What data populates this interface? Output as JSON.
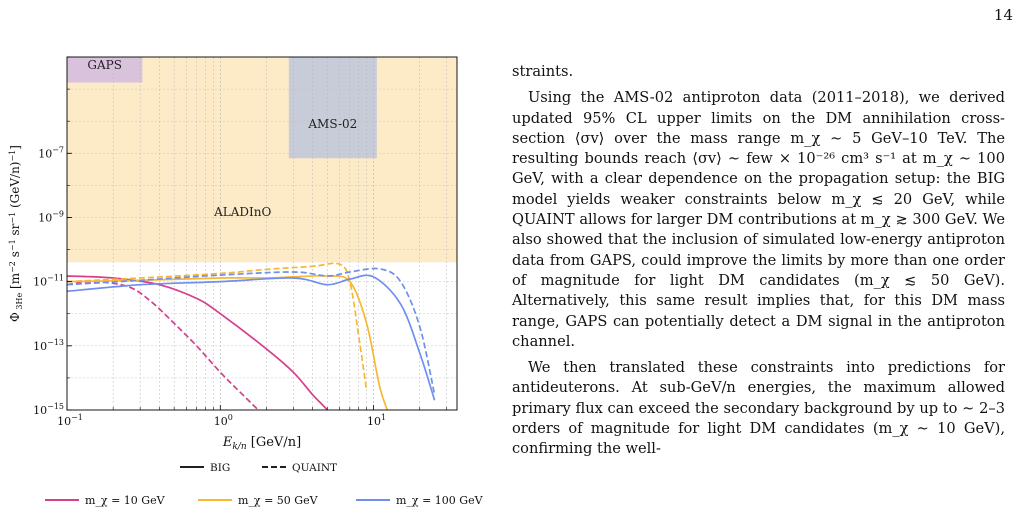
{
  "page_number": "14",
  "chart_data": {
    "type": "line",
    "xscale": "log",
    "yscale": "log",
    "xlim": [
      0.1,
      35
    ],
    "ylim": [
      1e-15,
      0.0001
    ],
    "xlabel": "E_{k/n} [GeV/n]",
    "ylabel": "Φ_{3He-bar} [m^-2 s^-1 sr^-1 (GeV/n)^-1]",
    "xticks": [
      "10^-1",
      "10^0",
      "10^1"
    ],
    "yticks": [
      "10^-15",
      "10^-13",
      "10^-11",
      "10^-9",
      "10^-7"
    ],
    "regions": [
      {
        "label": "GAPS",
        "color": "#d9c3dc",
        "x": [
          0.1,
          0.31
        ],
        "y": [
          1.6e-05,
          0.0001
        ]
      },
      {
        "label": "AMS-02",
        "color": "#c8cbd8",
        "x": [
          2.8,
          10.5
        ],
        "y": [
          7e-08,
          0.0001
        ]
      },
      {
        "label": "ALADInO",
        "color": "#fdebc8",
        "x": [
          0.1,
          35
        ],
        "y": [
          4e-11,
          0.0001
        ]
      }
    ],
    "linestyle_legend": [
      {
        "label": "BIG",
        "style": "solid"
      },
      {
        "label": "QUAINT",
        "style": "dashed"
      }
    ],
    "series": [
      {
        "name": "m_χ = 10 GeV",
        "color": "#d63f8c",
        "model": "BIG",
        "x": [
          0.1,
          0.2,
          0.4,
          0.7,
          1.0,
          2.0,
          3.0,
          4.0,
          5.0,
          5.6
        ],
        "y": [
          1.5e-11,
          1.3e-11,
          8e-12,
          3e-12,
          1e-12,
          8e-14,
          1.5e-14,
          3e-15,
          1e-15,
          5e-16
        ]
      },
      {
        "name": "m_χ = 10 GeV",
        "color": "#d63f8c",
        "model": "QUAINT",
        "x": [
          0.1,
          0.15,
          0.25,
          0.35,
          0.5,
          0.7,
          1.0,
          1.4,
          2.0,
          2.6
        ],
        "y": [
          8e-12,
          1e-11,
          7e-12,
          2.5e-12,
          5e-13,
          1e-13,
          1.5e-14,
          3e-15,
          6e-16,
          3e-16
        ]
      },
      {
        "name": "m_χ = 50 GeV",
        "color": "#f7b733",
        "model": "BIG",
        "x": [
          0.1,
          0.3,
          1.0,
          2.0,
          3.0,
          5.0,
          7.0,
          9.0,
          11.0,
          13.0
        ],
        "y": [
          1e-11,
          1.1e-11,
          1.3e-11,
          1.3e-11,
          1.4e-11,
          1.5e-11,
          1e-11,
          5e-13,
          5e-15,
          5e-16
        ]
      },
      {
        "name": "m_χ = 50 GeV",
        "color": "#f7b733",
        "model": "QUAINT",
        "x": [
          0.1,
          0.3,
          1.0,
          2.0,
          4.0,
          6.0,
          7.0,
          8.0,
          9.0
        ],
        "y": [
          1e-11,
          1.3e-11,
          1.8e-11,
          2.4e-11,
          3e-11,
          3.5e-11,
          1e-11,
          2e-13,
          4e-15
        ]
      },
      {
        "name": "m_χ = 100 GeV",
        "color": "#6f8ff0",
        "model": "BIG",
        "x": [
          0.1,
          0.3,
          1.0,
          3.0,
          5.0,
          7.0,
          10.0,
          15.0,
          20.0,
          25.0
        ],
        "y": [
          5e-12,
          8e-12,
          1e-11,
          1.3e-11,
          8e-12,
          1.2e-11,
          1.4e-11,
          2e-12,
          6e-14,
          2e-15
        ]
      },
      {
        "name": "m_χ = 100 GeV",
        "color": "#6f8ff0",
        "model": "QUAINT",
        "x": [
          0.1,
          0.3,
          1.0,
          3.0,
          5.0,
          7.0,
          11.0,
          15.0,
          20.0,
          25.0
        ],
        "y": [
          8e-12,
          1.1e-11,
          1.6e-11,
          2e-11,
          1.5e-11,
          2e-11,
          2.5e-11,
          1e-11,
          4e-13,
          3e-15
        ]
      }
    ]
  },
  "text": {
    "p0": "straints.",
    "p1": "Using the AMS-02 antiproton data (2011–2018), we derived updated 95% CL upper limits on the DM annihilation cross-section ⟨σv⟩ over the mass range m_χ ∼ 5 GeV–10 TeV. The resulting bounds reach ⟨σv⟩ ∼ few × 10⁻²⁶ cm³ s⁻¹ at m_χ ∼ 100 GeV, with a clear dependence on the propagation setup: the BIG model yields weaker constraints below m_χ ≲ 20 GeV, while QUAINT allows for larger DM contributions at m_χ ≳ 300 GeV. We also showed that the inclusion of simulated low-energy antiproton data from GAPS, could improve the limits by more than one order of magnitude for light DM candidates (m_χ ≲ 50 GeV). Alternatively, this same result implies that, for this DM mass range, GAPS can potentially detect a DM signal in the antiproton channel.",
    "p2": "We then translated these constraints into predictions for antideuterons. At sub-GeV/n energies, the maximum allowed primary flux can exceed the secondary background by up to ∼ 2–3 orders of magnitude for light DM candidates (m_χ ∼ 10 GeV), confirming the well-"
  }
}
